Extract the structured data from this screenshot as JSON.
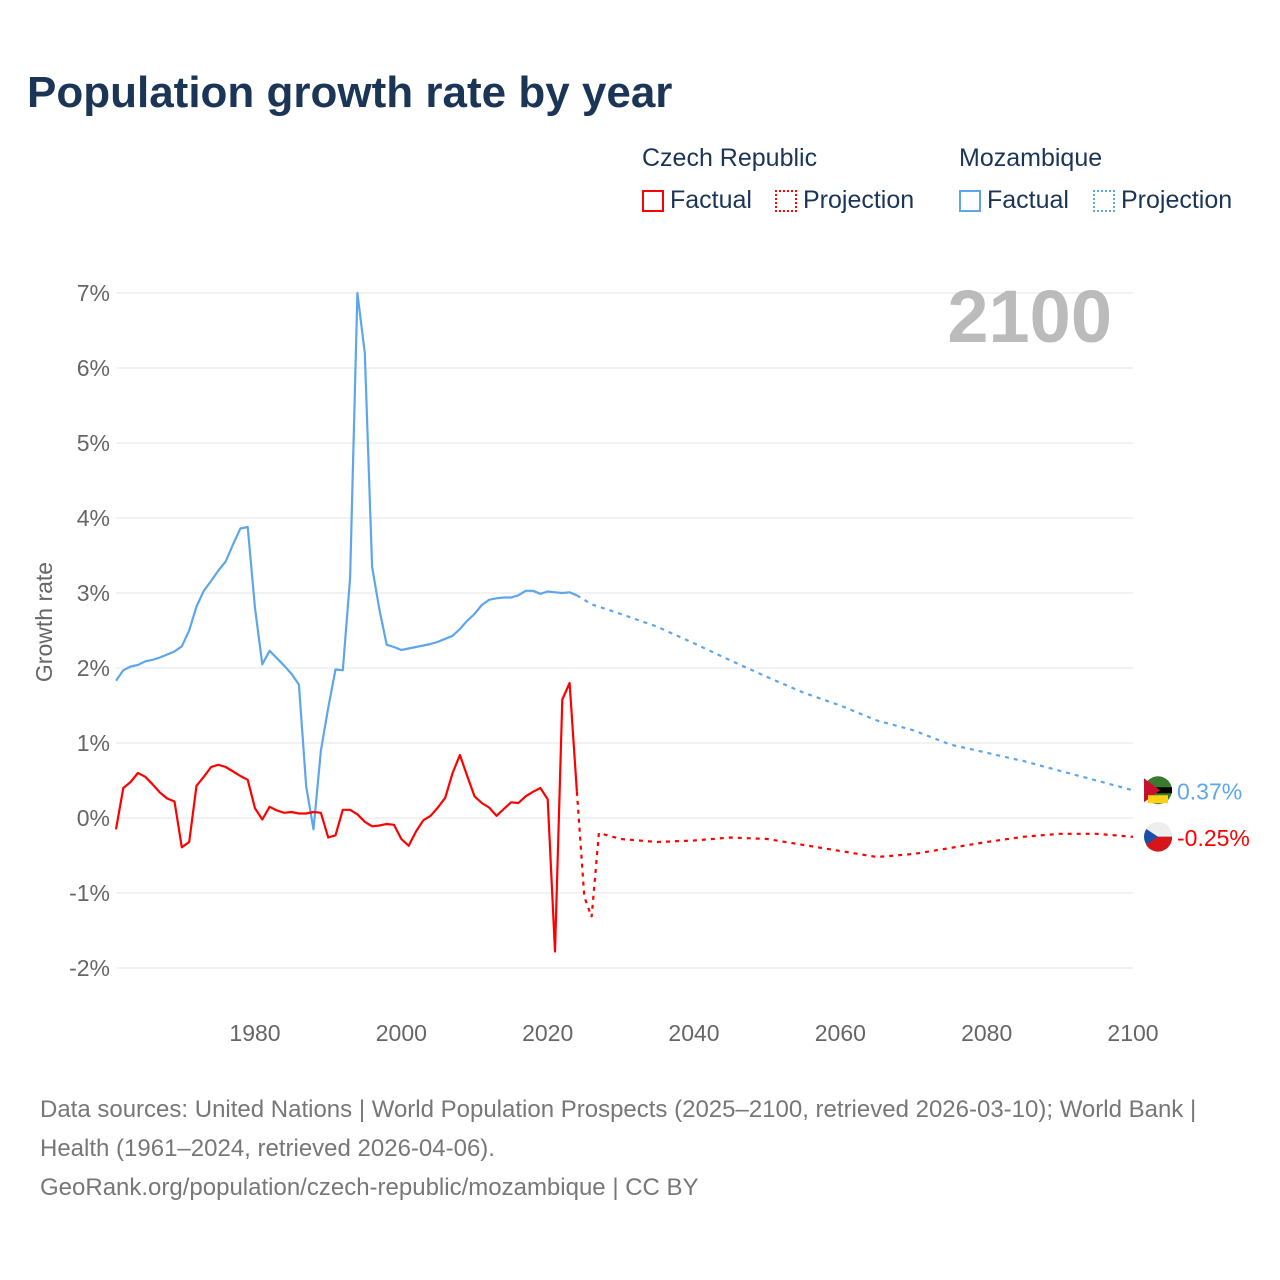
{
  "title": "Population growth rate by year",
  "legend": {
    "groups": [
      {
        "name": "Czech Republic",
        "color": "#ff0000",
        "factual": "Factual",
        "projection": "Projection"
      },
      {
        "name": "Mozambique",
        "color": "#5ea6ec",
        "factual": "Factual",
        "projection": "Projection"
      }
    ]
  },
  "source": {
    "line1": "Data sources: United Nations | World Population Prospects (2025–2100, retrieved 2026-03-10); World Bank | Health (1961–2024, retrieved 2026-04-06).",
    "line2": "GeoRank.org/population/czech-republic/mozambique | CC BY"
  },
  "chart_data": {
    "type": "line",
    "title": "Population growth rate by year",
    "ylabel": "Growth rate",
    "xlabel": "",
    "year_label": "2100",
    "xlim": [
      1961,
      2100
    ],
    "ylim": [
      -2,
      7
    ],
    "x_ticks": [
      1980,
      2000,
      2020,
      2040,
      2060,
      2080,
      2100
    ],
    "y_ticks": [
      {
        "v": -2,
        "label": "-2%"
      },
      {
        "v": -1,
        "label": "-1%"
      },
      {
        "v": 0,
        "label": "0%"
      },
      {
        "v": 1,
        "label": "1%"
      },
      {
        "v": 2,
        "label": "2%"
      },
      {
        "v": 3,
        "label": "3%"
      },
      {
        "v": 4,
        "label": "4%"
      },
      {
        "v": 5,
        "label": "5%"
      },
      {
        "v": 6,
        "label": "6%"
      },
      {
        "v": 7,
        "label": "7%"
      }
    ],
    "grid": true,
    "series": [
      {
        "name": "Mozambique",
        "color": "#5ea6ec",
        "end_label": "0.37%",
        "factual": {
          "x": [
            1961,
            1962,
            1963,
            1964,
            1965,
            1966,
            1967,
            1968,
            1969,
            1970,
            1971,
            1972,
            1973,
            1974,
            1975,
            1976,
            1977,
            1978,
            1979,
            1980,
            1981,
            1982,
            1983,
            1984,
            1985,
            1986,
            1987,
            1988,
            1989,
            1990,
            1991,
            1992,
            1993,
            1994,
            1995,
            1996,
            1997,
            1998,
            1999,
            2000,
            2001,
            2002,
            2003,
            2004,
            2005,
            2006,
            2007,
            2008,
            2009,
            2010,
            2011,
            2012,
            2013,
            2014,
            2015,
            2016,
            2017,
            2018,
            2019,
            2020,
            2021,
            2022,
            2023,
            2024
          ],
          "y": [
            1.83,
            1.97,
            2.02,
            2.04,
            2.09,
            2.11,
            2.14,
            2.18,
            2.22,
            2.29,
            2.5,
            2.82,
            3.03,
            3.16,
            3.3,
            3.42,
            3.65,
            3.86,
            3.88,
            2.8,
            2.05,
            2.23,
            2.13,
            2.03,
            1.92,
            1.78,
            0.42,
            -0.15,
            0.9,
            1.47,
            1.98,
            1.97,
            3.2,
            7.0,
            6.2,
            3.35,
            2.78,
            2.31,
            2.28,
            2.24,
            2.26,
            2.28,
            2.3,
            2.32,
            2.35,
            2.39,
            2.43,
            2.52,
            2.63,
            2.72,
            2.84,
            2.91,
            2.93,
            2.94,
            2.94,
            2.97,
            3.03,
            3.03,
            2.99,
            3.02,
            3.01,
            3.0,
            3.01,
            2.97
          ]
        },
        "projection": {
          "x": [
            2024,
            2026,
            2030,
            2035,
            2040,
            2045,
            2050,
            2055,
            2060,
            2065,
            2070,
            2075,
            2080,
            2085,
            2090,
            2095,
            2100
          ],
          "y": [
            2.97,
            2.85,
            2.72,
            2.55,
            2.33,
            2.1,
            1.88,
            1.67,
            1.5,
            1.3,
            1.17,
            0.98,
            0.87,
            0.76,
            0.63,
            0.5,
            0.37
          ]
        }
      },
      {
        "name": "Czech Republic",
        "color": "#ff0000",
        "end_label": "-0.25%",
        "factual": {
          "x": [
            1961,
            1962,
            1963,
            1964,
            1965,
            1966,
            1967,
            1968,
            1969,
            1970,
            1971,
            1972,
            1973,
            1974,
            1975,
            1976,
            1977,
            1978,
            1979,
            1980,
            1981,
            1982,
            1983,
            1984,
            1985,
            1986,
            1987,
            1988,
            1989,
            1990,
            1991,
            1992,
            1993,
            1994,
            1995,
            1996,
            1997,
            1998,
            1999,
            2000,
            2001,
            2002,
            2003,
            2004,
            2005,
            2006,
            2007,
            2008,
            2009,
            2010,
            2011,
            2012,
            2013,
            2014,
            2015,
            2016,
            2017,
            2018,
            2019,
            2020,
            2021,
            2022,
            2023,
            2024
          ],
          "y": [
            -0.15,
            0.4,
            0.48,
            0.6,
            0.55,
            0.45,
            0.34,
            0.26,
            0.22,
            -0.39,
            -0.32,
            0.43,
            0.55,
            0.68,
            0.71,
            0.68,
            0.62,
            0.56,
            0.51,
            0.13,
            -0.02,
            0.15,
            0.1,
            0.07,
            0.08,
            0.06,
            0.06,
            0.08,
            0.07,
            -0.26,
            -0.23,
            0.11,
            0.11,
            0.05,
            -0.05,
            -0.11,
            -0.1,
            -0.08,
            -0.09,
            -0.28,
            -0.37,
            -0.18,
            -0.03,
            0.03,
            0.14,
            0.27,
            0.6,
            0.84,
            0.56,
            0.29,
            0.2,
            0.14,
            0.03,
            0.12,
            0.21,
            0.2,
            0.29,
            0.35,
            0.4,
            0.25,
            -1.78,
            1.58,
            1.8,
            0.35
          ]
        },
        "projection": {
          "x": [
            2024,
            2025,
            2026,
            2027,
            2030,
            2035,
            2040,
            2045,
            2050,
            2055,
            2060,
            2065,
            2070,
            2075,
            2080,
            2085,
            2090,
            2095,
            2100
          ],
          "y": [
            0.35,
            -1.05,
            -1.32,
            -0.2,
            -0.28,
            -0.32,
            -0.3,
            -0.26,
            -0.28,
            -0.36,
            -0.44,
            -0.52,
            -0.48,
            -0.4,
            -0.32,
            -0.25,
            -0.21,
            -0.21,
            -0.25
          ]
        }
      }
    ]
  }
}
